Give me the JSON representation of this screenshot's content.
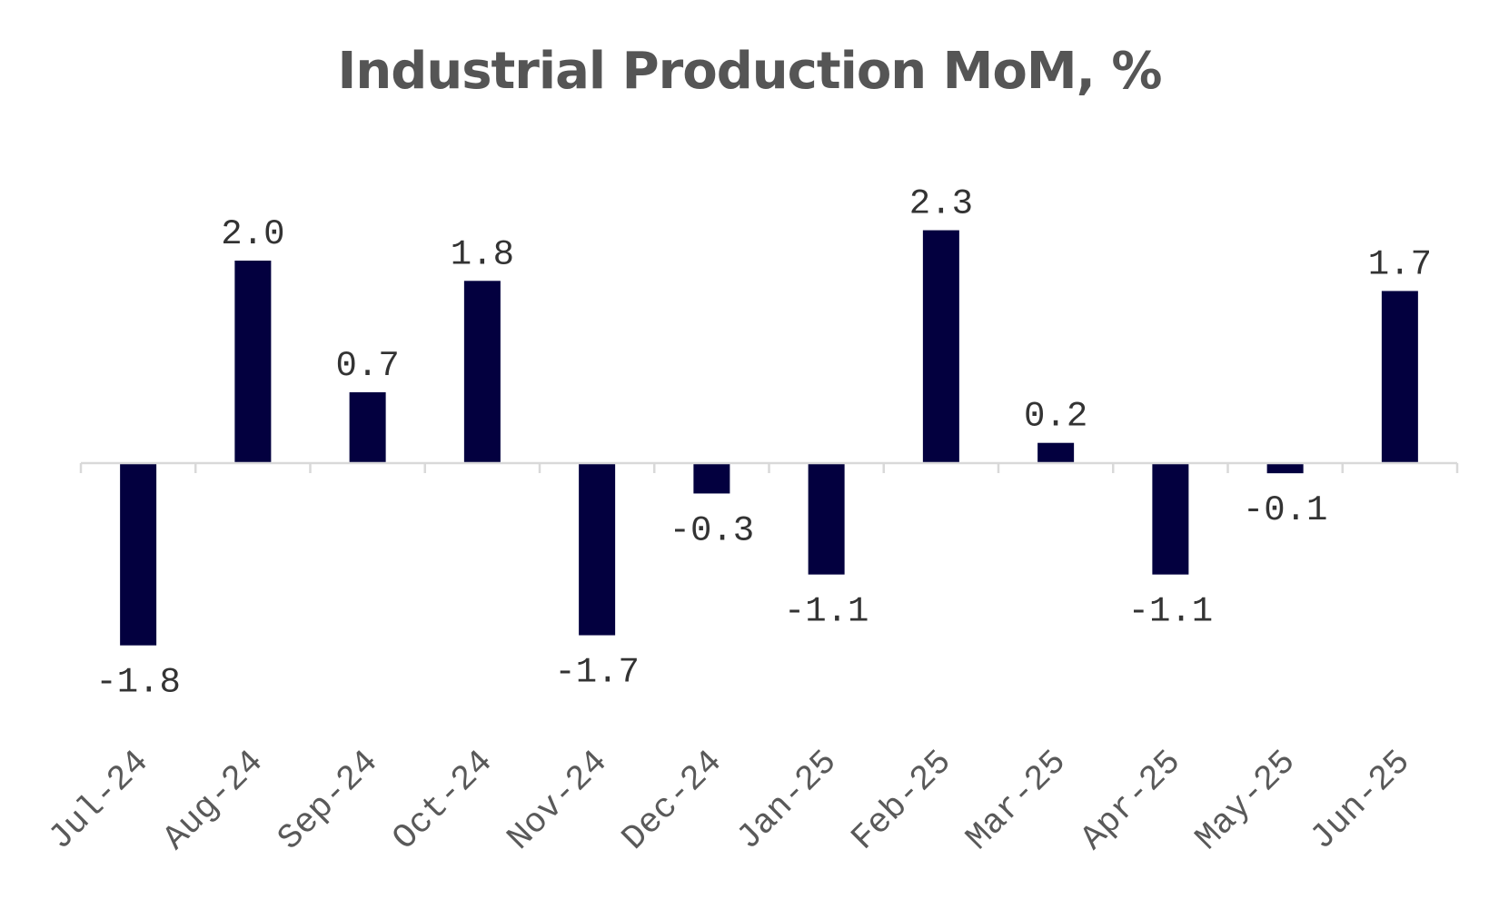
{
  "chart_data": {
    "type": "bar",
    "title": "Industrial Production MoM, %",
    "xlabel": "",
    "ylabel": "",
    "categories": [
      "Jul-24",
      "Aug-24",
      "Sep-24",
      "Oct-24",
      "Nov-24",
      "Dec-24",
      "Jan-25",
      "Feb-25",
      "Mar-25",
      "Apr-25",
      "May-25",
      "Jun-25"
    ],
    "values": [
      -1.8,
      2.0,
      0.7,
      1.8,
      -1.7,
      -0.3,
      -1.1,
      2.3,
      0.2,
      -1.1,
      -0.1,
      1.7
    ],
    "data_labels": [
      "-1.8",
      "2.0",
      "0.7",
      "1.8",
      "-1.7",
      "-0.3",
      "-1.1",
      "2.3",
      "0.2",
      "-1.1",
      "-0.1",
      "1.7"
    ],
    "ylim": [
      -2.2,
      2.8
    ],
    "grid": false,
    "legend": "none",
    "bar_color": "#03003f"
  }
}
